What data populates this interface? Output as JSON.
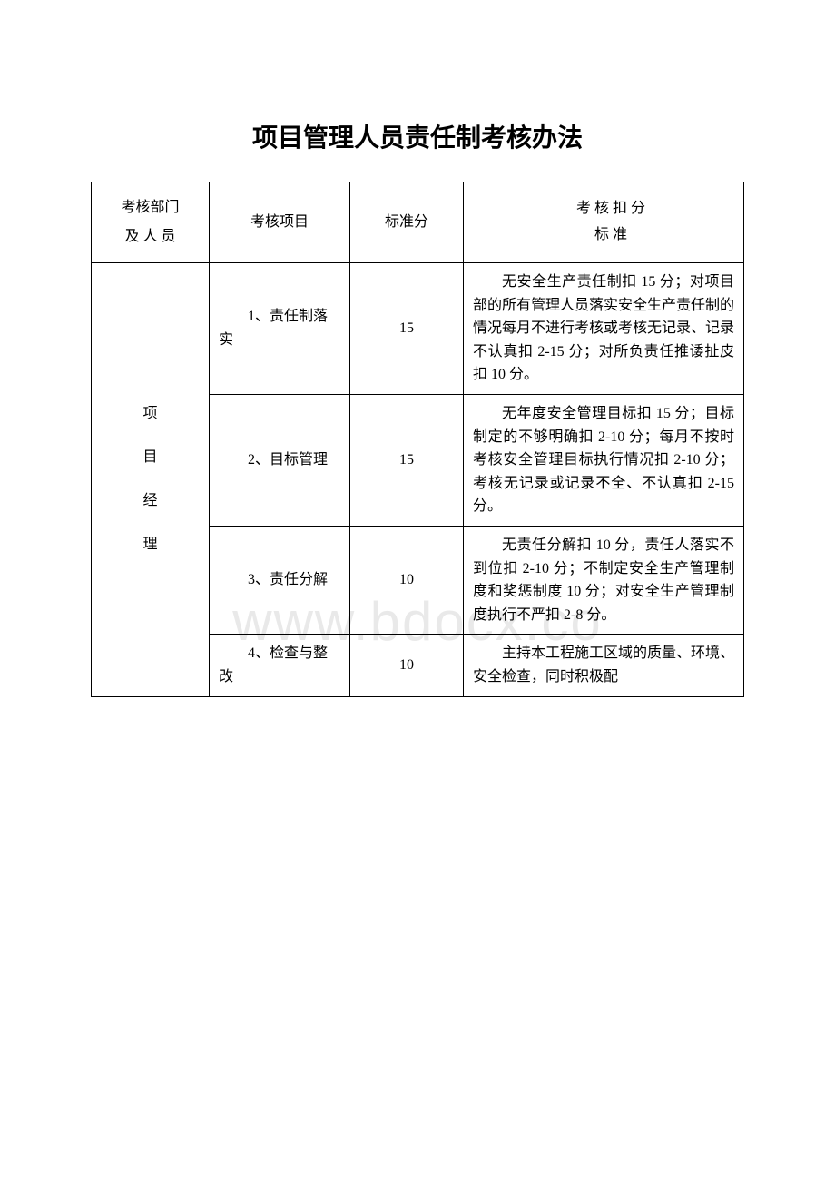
{
  "title": "项目管理人员责任制考核办法",
  "watermark": "www.bdocx.co",
  "headers": {
    "dept": "考核部门\n及 人 员",
    "item": "考核项目",
    "score": "标准分",
    "standard": "考 核 扣 分\n标 准"
  },
  "department": "项\n目\n经\n理",
  "rows": [
    {
      "item": "1、责任制落实",
      "score": "15",
      "standard": "无安全生产责任制扣 15 分；对项目部的所有管理人员落实安全生产责任制的情况每月不进行考核或考核无记录、记录不认真扣 2-15 分；对所负责任推诿扯皮扣 10 分。"
    },
    {
      "item": "2、目标管理",
      "score": "15",
      "standard": "无年度安全管理目标扣 15 分；目标制定的不够明确扣 2-10 分；每月不按时考核安全管理目标执行情况扣 2-10 分；考核无记录或记录不全、不认真扣 2-15 分。"
    },
    {
      "item": "3、责任分解",
      "score": "10",
      "standard": "无责任分解扣 10 分，责任人落实不到位扣 2-10 分；不制定安全生产管理制度和奖惩制度 10 分；对安全生产管理制度执行不严扣 2-8 分。"
    },
    {
      "item": "4、检查与整改",
      "score": "10",
      "standard": "主持本工程施工区域的质量、环境、安全检查，同时积极配"
    }
  ],
  "colors": {
    "text": "#000000",
    "border": "#000000",
    "background": "#ffffff",
    "watermark": "rgba(200,200,200,0.4)"
  },
  "typography": {
    "title_fontsize": 28,
    "body_fontsize": 16,
    "watermark_fontsize": 60
  }
}
